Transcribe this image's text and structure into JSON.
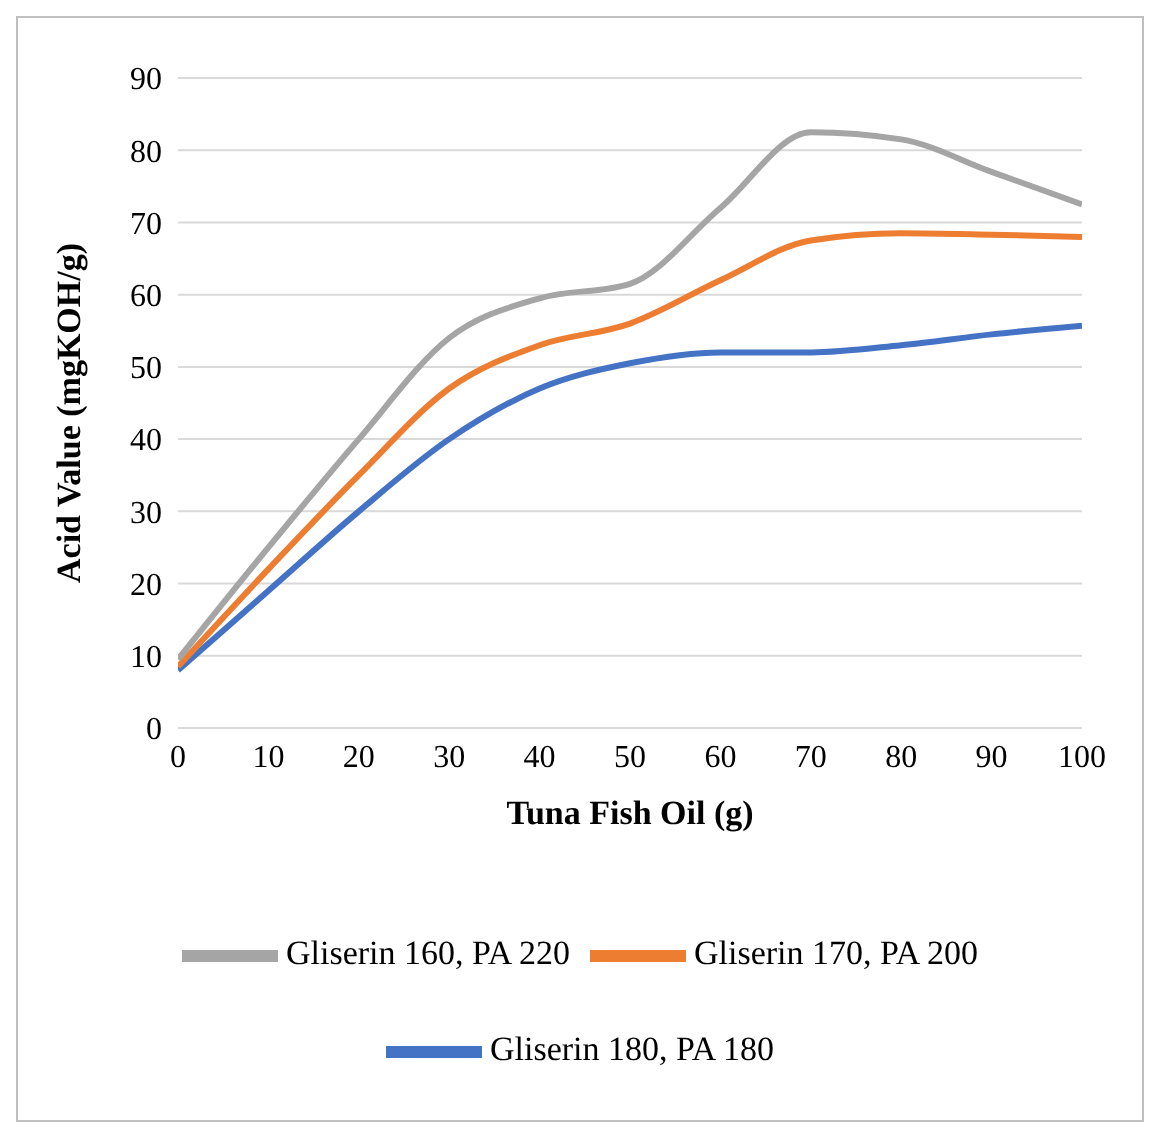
{
  "chart_data": {
    "type": "line",
    "xlabel": "Tuna Fish Oil (g)",
    "ylabel": "Acid Value (mgKOH/g)",
    "x": [
      0,
      10,
      20,
      30,
      40,
      50,
      60,
      70,
      80,
      90,
      100
    ],
    "xlim": [
      0,
      100
    ],
    "xticks": [
      0,
      10,
      20,
      30,
      40,
      50,
      60,
      70,
      80,
      90,
      100
    ],
    "ylim": [
      0,
      90
    ],
    "yticks": [
      0,
      10,
      20,
      30,
      40,
      50,
      60,
      70,
      80,
      90
    ],
    "grid": "y",
    "legend": "bottom",
    "marker": "none",
    "line_style": "solid",
    "series": [
      {
        "name": "Gliserin 180, PA 180",
        "color": "#4472c4",
        "values": [
          8,
          19,
          30,
          40,
          47,
          50.5,
          52,
          52,
          53,
          54.5,
          55.7
        ]
      },
      {
        "name": "Gliserin 170, PA 200",
        "color": "#ed7d31",
        "values": [
          8.5,
          22,
          35,
          47,
          53,
          56,
          62,
          67.5,
          68.5,
          68.3,
          68
        ]
      },
      {
        "name": "Gliserin 160, PA 220",
        "color": "#a5a5a5",
        "values": [
          9.5,
          25,
          40,
          54,
          59.5,
          61.5,
          72,
          82.5,
          81.5,
          77,
          72.5
        ]
      }
    ]
  }
}
